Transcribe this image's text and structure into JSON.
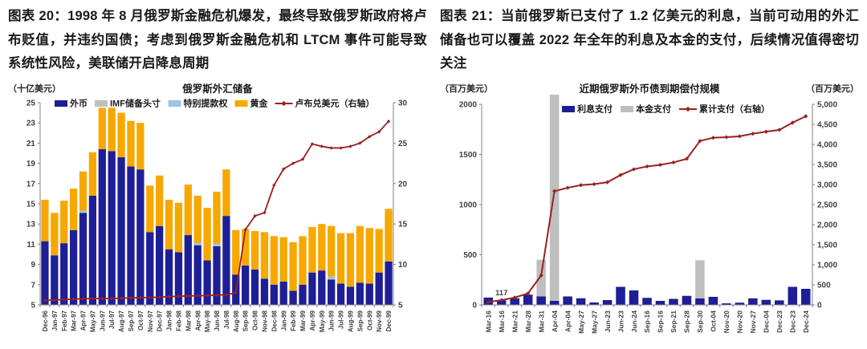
{
  "colors": {
    "navy": "#1E1E96",
    "gold": "#F7A800",
    "gray": "#BFBFBF",
    "light_blue": "#9DC3E6",
    "dark_red": "#9A2121",
    "axis": "#808080",
    "tick_text": "#404040"
  },
  "chart_data": [
    {
      "id": "figure-20",
      "type": "stacked-bar+line",
      "heading": "图表 20：1998 年 8 月俄罗斯金融危机爆发，最终导致俄罗斯政府将卢布贬值，并违约国债；考虑到俄罗斯金融危机和 LTCM 事件可能导致系统性风险，美联储开启降息周期",
      "unit_left": "（十亿美元）",
      "title": "俄罗斯外汇储备",
      "legend": [
        {
          "label": "外币",
          "color": "#1E1E96",
          "type": "rect"
        },
        {
          "label": "IMF储备头寸",
          "color": "#BFBFBF",
          "type": "rect"
        },
        {
          "label": "特别提款权",
          "color": "#9DC3E6",
          "type": "rect"
        },
        {
          "label": "黄金",
          "color": "#F7A800",
          "type": "rect"
        },
        {
          "label": "卢布兑美元（右轴）",
          "color": "#9A2121",
          "type": "line"
        }
      ],
      "axis_left": {
        "min": 5,
        "max": 25,
        "ticks": [
          5,
          7,
          9,
          11,
          13,
          15,
          17,
          19,
          21,
          23,
          25
        ]
      },
      "axis_right": {
        "min": 5,
        "max": 30,
        "ticks": [
          5,
          10,
          15,
          20,
          25,
          30
        ]
      },
      "categories": [
        "Dec-96",
        "Jan-97",
        "Feb-97",
        "Mar-97",
        "Apr-97",
        "May-97",
        "Jun-97",
        "Jul-97",
        "Aug-97",
        "Sep-97",
        "Oct-97",
        "Nov-97",
        "Dec-97",
        "Jan-98",
        "Feb-98",
        "Mar-98",
        "Apr-98",
        "May-98",
        "Jun-98",
        "Jul-98",
        "Aug-98",
        "Sep-98",
        "Oct-98",
        "Nov-98",
        "Dec-98",
        "Jan-99",
        "Feb-99",
        "Mar-99",
        "Apr-99",
        "May-99",
        "Jun-99",
        "Jul-99",
        "Aug-99",
        "Sep-99",
        "Oct-99",
        "Nov-99",
        "Dec-99"
      ],
      "series": {
        "foreign": [
          11.3,
          9.9,
          11.1,
          12.4,
          14.1,
          15.8,
          20.4,
          20.2,
          19.6,
          18.7,
          18.4,
          12.2,
          12.8,
          10.5,
          10.2,
          11.9,
          10.9,
          9.4,
          10.8,
          13.8,
          8.0,
          8.9,
          8.5,
          7.6,
          7.0,
          7.3,
          6.4,
          7.0,
          8.2,
          8.4,
          7.5,
          7.1,
          6.8,
          7.2,
          7.1,
          8.2,
          9.3
        ],
        "imf": [
          0,
          0,
          0,
          0,
          0,
          0,
          0,
          0,
          0,
          0,
          0,
          0,
          0,
          0,
          0,
          0,
          0,
          0,
          0,
          0,
          0,
          0,
          0,
          0,
          0,
          0,
          0,
          0,
          0,
          0,
          0,
          0,
          0,
          0,
          0,
          0,
          0
        ],
        "sdr": [
          0,
          0,
          0,
          0,
          0.2,
          0,
          0,
          0,
          0,
          0,
          0,
          0,
          0,
          0,
          0,
          0,
          0.25,
          0,
          0.25,
          0,
          0,
          0,
          0,
          0,
          0,
          0,
          0,
          0,
          0,
          0,
          0.3,
          0,
          0,
          0,
          0,
          0,
          0
        ],
        "gold": [
          4.1,
          4.2,
          4.2,
          4.1,
          3.9,
          4.3,
          4.1,
          4.3,
          4.4,
          4.5,
          4.6,
          4.6,
          5.0,
          4.9,
          4.9,
          5.0,
          4.65,
          5.2,
          5.15,
          4.6,
          4.4,
          3.6,
          3.8,
          4.6,
          4.8,
          4.4,
          4.8,
          4.8,
          4.5,
          4.6,
          5.0,
          5.0,
          5.3,
          5.6,
          5.5,
          4.3,
          5.2
        ],
        "rouble": [
          5.56,
          5.6,
          5.67,
          5.72,
          5.76,
          5.78,
          5.78,
          5.79,
          5.83,
          5.86,
          5.89,
          5.92,
          5.96,
          6.02,
          6.07,
          6.11,
          6.13,
          6.16,
          6.2,
          6.24,
          6.5,
          14.3,
          16.0,
          16.4,
          19.8,
          21.8,
          22.5,
          23.0,
          24.9,
          24.6,
          24.4,
          24.4,
          24.6,
          25.0,
          25.8,
          26.4,
          27.7
        ]
      },
      "annotation": null
    },
    {
      "id": "figure-21",
      "type": "stacked-bar+line",
      "heading": "图表 21：当前俄罗斯已支付了 1.2 亿美元的利息，当前可动用的外汇储备也可以覆盖 2022 年全年的利息及本金的支付，后续情况值得密切关注",
      "unit_left": "（百万美元）",
      "unit_right": "（百万美元）",
      "title": "近期俄罗斯外币债到期偿付规模",
      "legend": [
        {
          "label": "利息支付",
          "color": "#1E1E96",
          "type": "rect"
        },
        {
          "label": "本金支付",
          "color": "#BFBFBF",
          "type": "rect"
        },
        {
          "label": "累计支付（右轴）",
          "color": "#9A2121",
          "type": "line"
        }
      ],
      "axis_left": {
        "min": 0,
        "max": 2000,
        "ticks": [
          0,
          500,
          1000,
          1500,
          2000
        ]
      },
      "axis_right": {
        "min": 0,
        "max": 5000,
        "ticks": [
          "0",
          "500",
          "1,000",
          "1,500",
          "2,000",
          "2,500",
          "3,000",
          "3,500",
          "4,000",
          "4,500",
          "5,000"
        ]
      },
      "categories": [
        "Mar-16",
        "Mar-16",
        "Mar-21",
        "Mar-28",
        "Mar-31",
        "Apr-04",
        "Apr-04",
        "May-27",
        "May-27",
        "Jun-23",
        "Jun-23",
        "Jun-24",
        "Sep-16",
        "Sep-16",
        "Sep-21",
        "Sep-28",
        "Sep-30",
        "Oct-04",
        "Nov-20",
        "Nov-20",
        "Nov-27",
        "Dec-04",
        "Dec-23",
        "Dec-23",
        "Dec-24"
      ],
      "series": {
        "interest": [
          73,
          44,
          66,
          102,
          84,
          40,
          84,
          66,
          24,
          48,
          180,
          144,
          70,
          40,
          60,
          90,
          65,
          80,
          15,
          22,
          65,
          50,
          45,
          180,
          160
        ],
        "principal": [
          0,
          0,
          0,
          0,
          366,
          2060,
          0,
          0,
          0,
          0,
          0,
          0,
          0,
          0,
          0,
          0,
          380,
          0,
          0,
          0,
          0,
          0,
          0,
          0,
          0
        ],
        "cumulative": [
          73,
          117,
          183,
          285,
          735,
          2835,
          2919,
          2985,
          3009,
          3057,
          3237,
          3381,
          3451,
          3491,
          3551,
          3641,
          4086,
          4166,
          4181,
          4203,
          4268,
          4318,
          4363,
          4543,
          4703
        ]
      },
      "annotation": {
        "text": "117",
        "index": 1
      }
    }
  ]
}
